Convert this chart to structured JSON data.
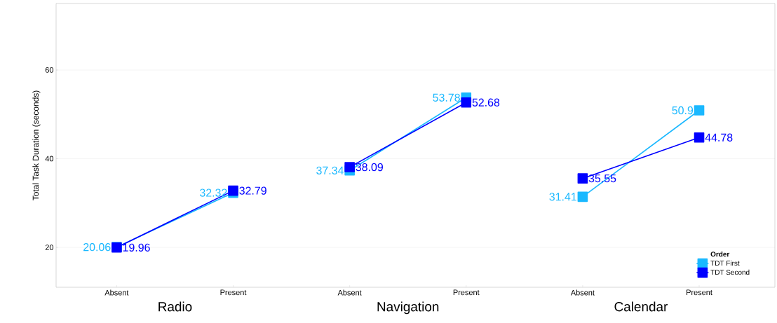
{
  "chart_data": {
    "type": "line",
    "ylabel": "Total Task Duration (seconds)",
    "legend_title": "Order",
    "categories": [
      "Absent",
      "Present",
      "Absent",
      "Present",
      "Absent",
      "Present"
    ],
    "series": [
      {
        "name": "TDT First",
        "color": "#1ab8ff",
        "values": [
          20.06,
          32.32,
          null,
          null,
          null,
          null
        ]
      },
      {
        "name": "TDT Second",
        "color": "#0000ff",
        "values": [
          19.96,
          32.79,
          null,
          null,
          null,
          null
        ]
      },
      {
        "color": "#1ab8ff",
        "values": [
          null,
          null,
          37.34,
          53.78,
          null,
          null
        ]
      },
      {
        "color": "#0000ff",
        "values": [
          null,
          null,
          38.09,
          52.68,
          null,
          null
        ]
      },
      {
        "color": "#1ab8ff",
        "values": [
          null,
          null,
          null,
          null,
          31.41,
          50.9
        ]
      },
      {
        "color": "#0000ff",
        "values": [
          null,
          null,
          null,
          null,
          35.55,
          44.78
        ]
      }
    ],
    "annotations": [
      "Radio",
      "Navigation",
      "Calendar"
    ],
    "ylim": [
      11,
      75
    ],
    "yticks": [
      20,
      40,
      60
    ],
    "grid": "y",
    "legend": "bottom right",
    "marker": "square",
    "line_style": "solid",
    "data_labels": true
  }
}
